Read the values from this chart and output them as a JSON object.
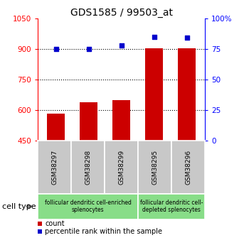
{
  "title": "GDS1585 / 99503_at",
  "samples": [
    "GSM38297",
    "GSM38298",
    "GSM38299",
    "GSM38295",
    "GSM38296"
  ],
  "counts": [
    585,
    640,
    650,
    905,
    905
  ],
  "percentiles": [
    75,
    75,
    78,
    85,
    84
  ],
  "ylim_left": [
    450,
    1050
  ],
  "ylim_right": [
    0,
    100
  ],
  "yticks_left": [
    450,
    600,
    750,
    900,
    1050
  ],
  "yticks_right": [
    0,
    25,
    50,
    75,
    100
  ],
  "hlines": [
    600,
    750,
    900
  ],
  "bar_color": "#cc0000",
  "dot_color": "#0000cc",
  "group1_label": "follicular dendritic cell-enriched\nsplenocytes",
  "group2_label": "follicular dendritic cell-\ndepleted splenocytes",
  "group1_indices": [
    0,
    1,
    2
  ],
  "group2_indices": [
    3,
    4
  ],
  "cell_type_label": "cell type",
  "legend_count": "count",
  "legend_percentile": "percentile rank within the sample",
  "title_fontsize": 10,
  "tick_fontsize": 7.5,
  "sample_fontsize": 6.5,
  "group_fontsize": 5.5,
  "legend_fontsize": 7,
  "cell_label_fontsize": 8
}
